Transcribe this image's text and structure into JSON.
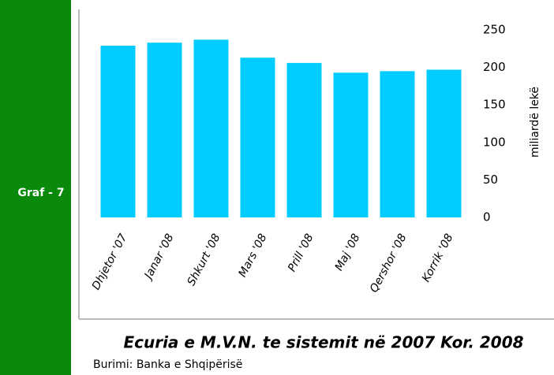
{
  "chart_data": {
    "type": "bar",
    "side_label": "Graf - 7",
    "title": "Ecuria e M.V.N. te sistemit në 2007 Kor. 2008",
    "source": "Burimi: Banka e Shqipërisë",
    "y_label": "miliardë lekë",
    "categories": [
      "Dhjetor '07",
      "Janar '08",
      "Shkurt '08",
      "Mars '08",
      "Prill '08",
      "Maj '08",
      "Qershor '08",
      "Korrik '08"
    ],
    "values": [
      229,
      233,
      237,
      213,
      206,
      193,
      195,
      197
    ],
    "color": "#00ccff",
    "ylim": [
      0,
      250
    ],
    "yticks": [
      0,
      50,
      100,
      150,
      200,
      250
    ],
    "grid": false
  }
}
